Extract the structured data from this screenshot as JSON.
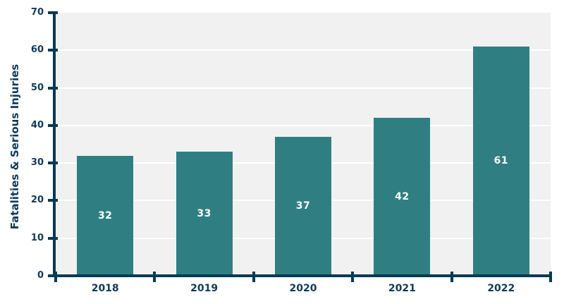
{
  "chart_data": {
    "type": "bar",
    "categories": [
      "2018",
      "2019",
      "2020",
      "2021",
      "2022"
    ],
    "values": [
      32,
      33,
      37,
      42,
      61
    ],
    "bar_labels": [
      "32",
      "33",
      "37",
      "42",
      "61"
    ],
    "title": "",
    "xlabel": "",
    "ylabel": "Fatalities & Serious Injuries",
    "ylim": [
      0,
      70
    ],
    "yticks": [
      0,
      10,
      20,
      30,
      40,
      50,
      60,
      70
    ],
    "grid": "horizontal",
    "legend_position": "none",
    "colors": {
      "bar": "#2F7F82",
      "bar_label_text": "#FFFFFF",
      "axis": "#053B54",
      "tick_label_text": "#0E3A5C",
      "plot_background": "#F1F1F1",
      "gridline": "#FFFFFF",
      "page_background": "#FFFFFF"
    }
  }
}
